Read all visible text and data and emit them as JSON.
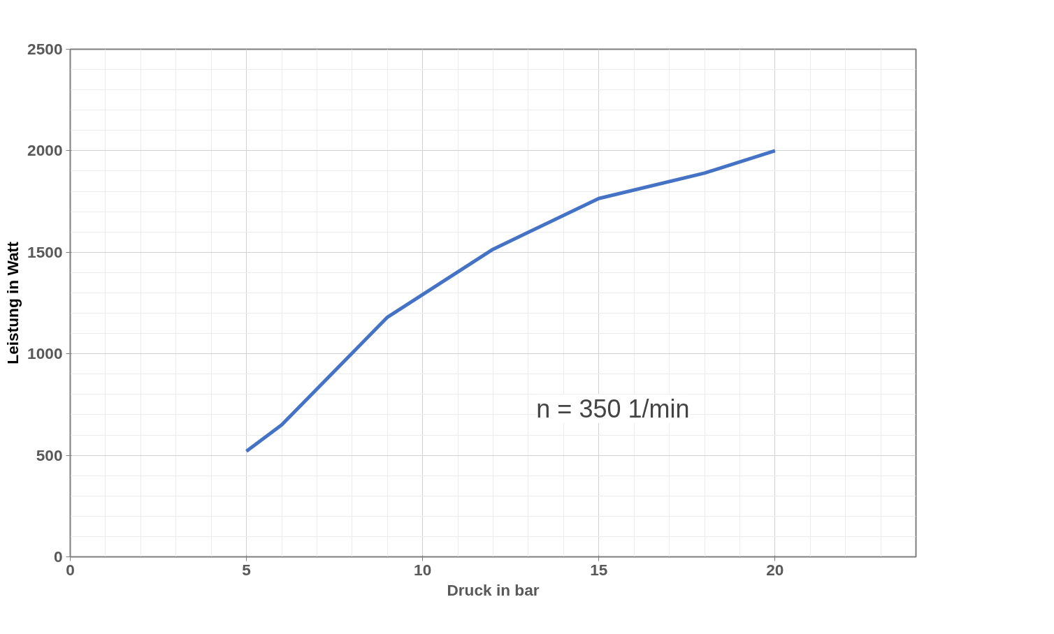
{
  "chart_data": {
    "type": "line",
    "xlabel": "Druck in bar",
    "ylabel": "Leistung in Watt",
    "x": [
      5,
      6,
      9,
      12,
      15,
      18,
      20
    ],
    "series": [
      {
        "color": "#4472c4",
        "values": [
          520,
          650,
          1180,
          1515,
          1765,
          1890,
          2000
        ]
      }
    ],
    "xlim": [
      0,
      24
    ],
    "xticks": [
      0,
      5,
      10,
      15,
      20
    ],
    "ylim": [
      0,
      2500
    ],
    "yticks": [
      0,
      500,
      1000,
      1500,
      2000,
      2500
    ],
    "grid": true,
    "marker": "none",
    "line_style": "solid",
    "annotations": [
      "n = 350 1/min"
    ]
  }
}
